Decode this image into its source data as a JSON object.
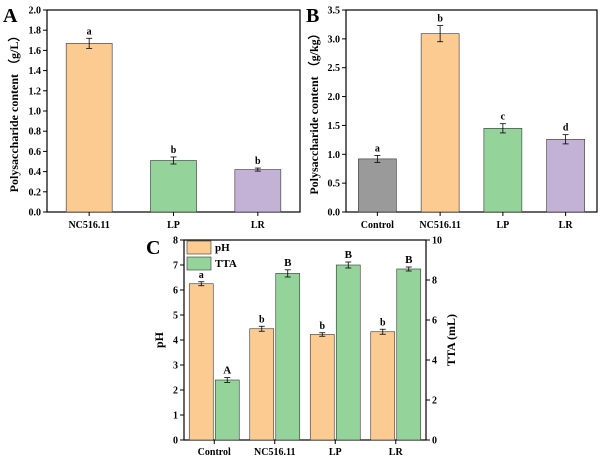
{
  "colors": {
    "NC516.11": "#fbcb92",
    "LP": "#94d49b",
    "LR": "#c3b1d6",
    "Control": "#9a9a9a",
    "pH": "#fbcb92",
    "TTA": "#94d49b"
  },
  "chart_data": [
    {
      "panel": "A",
      "type": "bar",
      "title": "",
      "xlabel": "",
      "ylabel": "Polysaccharide content （g/L）",
      "ylim": [
        0,
        2.0
      ],
      "yticks": [
        "0.0",
        "0.2",
        "0.4",
        "0.6",
        "0.8",
        "1.0",
        "1.2",
        "1.4",
        "1.6",
        "1.8",
        "2.0"
      ],
      "categories": [
        "NC516.11",
        "LP",
        "LR"
      ],
      "values": [
        1.67,
        0.51,
        0.42
      ],
      "errors": [
        0.05,
        0.035,
        0.015
      ],
      "letters": [
        "a",
        "b",
        "b"
      ]
    },
    {
      "panel": "B",
      "type": "bar",
      "title": "",
      "xlabel": "",
      "ylabel": "Polysaccharide content （g/kg）",
      "ylim": [
        0,
        3.5
      ],
      "yticks": [
        "0.0",
        "0.5",
        "1.0",
        "1.5",
        "2.0",
        "2.5",
        "3.0",
        "3.5"
      ],
      "categories": [
        "Control",
        "NC516.11",
        "LP",
        "LR"
      ],
      "values": [
        0.92,
        3.09,
        1.45,
        1.26
      ],
      "errors": [
        0.06,
        0.14,
        0.08,
        0.08
      ],
      "letters": [
        "a",
        "b",
        "c",
        "d"
      ]
    },
    {
      "panel": "C",
      "type": "bar",
      "title": "",
      "xlabel": "",
      "ylabel": "pH",
      "ylabel_right": "TTA (mL)",
      "ylim": [
        0,
        8
      ],
      "ylim_right": [
        0,
        10
      ],
      "yticks": [
        "0",
        "1",
        "2",
        "3",
        "4",
        "5",
        "6",
        "7",
        "8"
      ],
      "yticks_right": [
        "0",
        "2",
        "4",
        "6",
        "8",
        "10"
      ],
      "legend": "top-left",
      "categories": [
        "Control",
        "NC516.11",
        "LP",
        "LR"
      ],
      "series": [
        {
          "name": "pH",
          "axis": "left",
          "values": [
            6.25,
            4.45,
            4.22,
            4.33
          ],
          "errors": [
            0.08,
            0.1,
            0.07,
            0.1
          ],
          "letters": [
            "a",
            "b",
            "b",
            "b"
          ]
        },
        {
          "name": "TTA",
          "axis": "right",
          "values": [
            3.0,
            8.33,
            8.75,
            8.55
          ],
          "errors": [
            0.12,
            0.18,
            0.15,
            0.1
          ],
          "letters": [
            "A",
            "B",
            "B",
            "B"
          ]
        }
      ]
    }
  ]
}
